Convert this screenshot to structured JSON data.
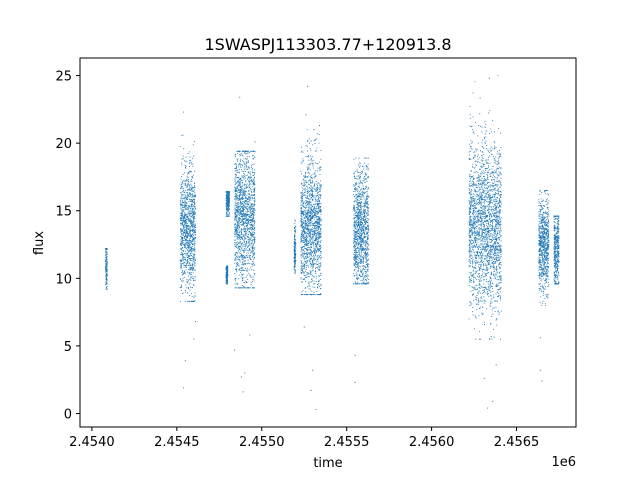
{
  "chart_data": {
    "type": "scatter",
    "title": "1SWASPJ113303.77+120913.8",
    "xlabel": "time",
    "ylabel": "flux",
    "x_offset_label": "1e6",
    "xlim": [
      2.45393,
      2.45685
    ],
    "ylim": [
      -1.0,
      26.3
    ],
    "xticks": [
      2.454,
      2.4545,
      2.455,
      2.4555,
      2.456,
      2.4565
    ],
    "xtick_labels": [
      "2.4540",
      "2.4545",
      "2.4550",
      "2.4555",
      "2.4560",
      "2.4565"
    ],
    "yticks": [
      0,
      5,
      10,
      15,
      20,
      25
    ],
    "ytick_labels": [
      "0",
      "5",
      "10",
      "15",
      "20",
      "25"
    ],
    "grid": false,
    "legend": "none",
    "marker_color": "#1f77b4",
    "clusters": [
      {
        "x_start": 2.45408,
        "x_end": 2.45409,
        "y_mean": 11.0,
        "y_spread": 0.9,
        "y_min": 9.2,
        "y_max": 12.2,
        "outliers": []
      },
      {
        "x_start": 2.45452,
        "x_end": 2.45461,
        "y_mean": 13.5,
        "y_spread": 2.3,
        "y_min": 8.3,
        "y_max": 20.6,
        "outliers": [
          [
            2.45454,
            22.3
          ],
          [
            2.45454,
            1.9
          ],
          [
            2.45455,
            3.9
          ],
          [
            2.4546,
            5.5
          ],
          [
            2.45461,
            6.8
          ]
        ]
      },
      {
        "x_start": 2.45479,
        "x_end": 2.45481,
        "y_mean": 15.8,
        "y_spread": 0.6,
        "y_min": 14.6,
        "y_max": 16.4,
        "outliers": []
      },
      {
        "x_start": 2.45479,
        "x_end": 2.4548,
        "y_mean": 10.3,
        "y_spread": 0.4,
        "y_min": 9.6,
        "y_max": 10.9,
        "outliers": []
      },
      {
        "x_start": 2.45484,
        "x_end": 2.45496,
        "y_mean": 14.5,
        "y_spread": 2.6,
        "y_min": 9.3,
        "y_max": 19.4,
        "outliers": [
          [
            2.45487,
            23.4
          ],
          [
            2.45484,
            4.7
          ],
          [
            2.45488,
            2.7
          ],
          [
            2.4549,
            3.0
          ],
          [
            2.45489,
            1.6
          ],
          [
            2.45496,
            20.1
          ],
          [
            2.45493,
            5.8
          ]
        ]
      },
      {
        "x_start": 2.45519,
        "x_end": 2.4552,
        "y_mean": 12.0,
        "y_spread": 1.0,
        "y_min": 10.4,
        "y_max": 17.0,
        "outliers": []
      },
      {
        "x_start": 2.45523,
        "x_end": 2.45535,
        "y_mean": 13.8,
        "y_spread": 2.5,
        "y_min": 8.8,
        "y_max": 21.0,
        "outliers": [
          [
            2.45527,
            24.2
          ],
          [
            2.45526,
            22.1
          ],
          [
            2.45529,
            1.7
          ],
          [
            2.45532,
            0.3
          ],
          [
            2.45525,
            6.4
          ],
          [
            2.4553,
            3.2
          ],
          [
            2.45534,
            21.3
          ]
        ]
      },
      {
        "x_start": 2.45554,
        "x_end": 2.45563,
        "y_mean": 13.6,
        "y_spread": 2.2,
        "y_min": 9.6,
        "y_max": 18.9,
        "outliers": [
          [
            2.45555,
            2.3
          ],
          [
            2.45555,
            4.3
          ],
          [
            2.45562,
            9.7
          ]
        ]
      },
      {
        "x_start": 2.45622,
        "x_end": 2.45641,
        "y_mean": 13.8,
        "y_spread": 3.0,
        "y_min": 5.5,
        "y_max": 25.0,
        "outliers": [
          [
            2.45633,
            0.4
          ],
          [
            2.45636,
            0.9
          ],
          [
            2.45631,
            2.6
          ],
          [
            2.45638,
            3.6
          ],
          [
            2.45634,
            24.8
          ]
        ]
      },
      {
        "x_start": 2.45663,
        "x_end": 2.45669,
        "y_mean": 12.5,
        "y_spread": 1.7,
        "y_min": 8.0,
        "y_max": 16.5,
        "outliers": [
          [
            2.45664,
            16.5
          ],
          [
            2.45664,
            3.2
          ],
          [
            2.45665,
            2.4
          ],
          [
            2.45664,
            5.6
          ]
        ]
      },
      {
        "x_start": 2.45672,
        "x_end": 2.45675,
        "y_mean": 12.2,
        "y_spread": 1.5,
        "y_min": 9.6,
        "y_max": 14.6,
        "outliers": []
      }
    ]
  }
}
